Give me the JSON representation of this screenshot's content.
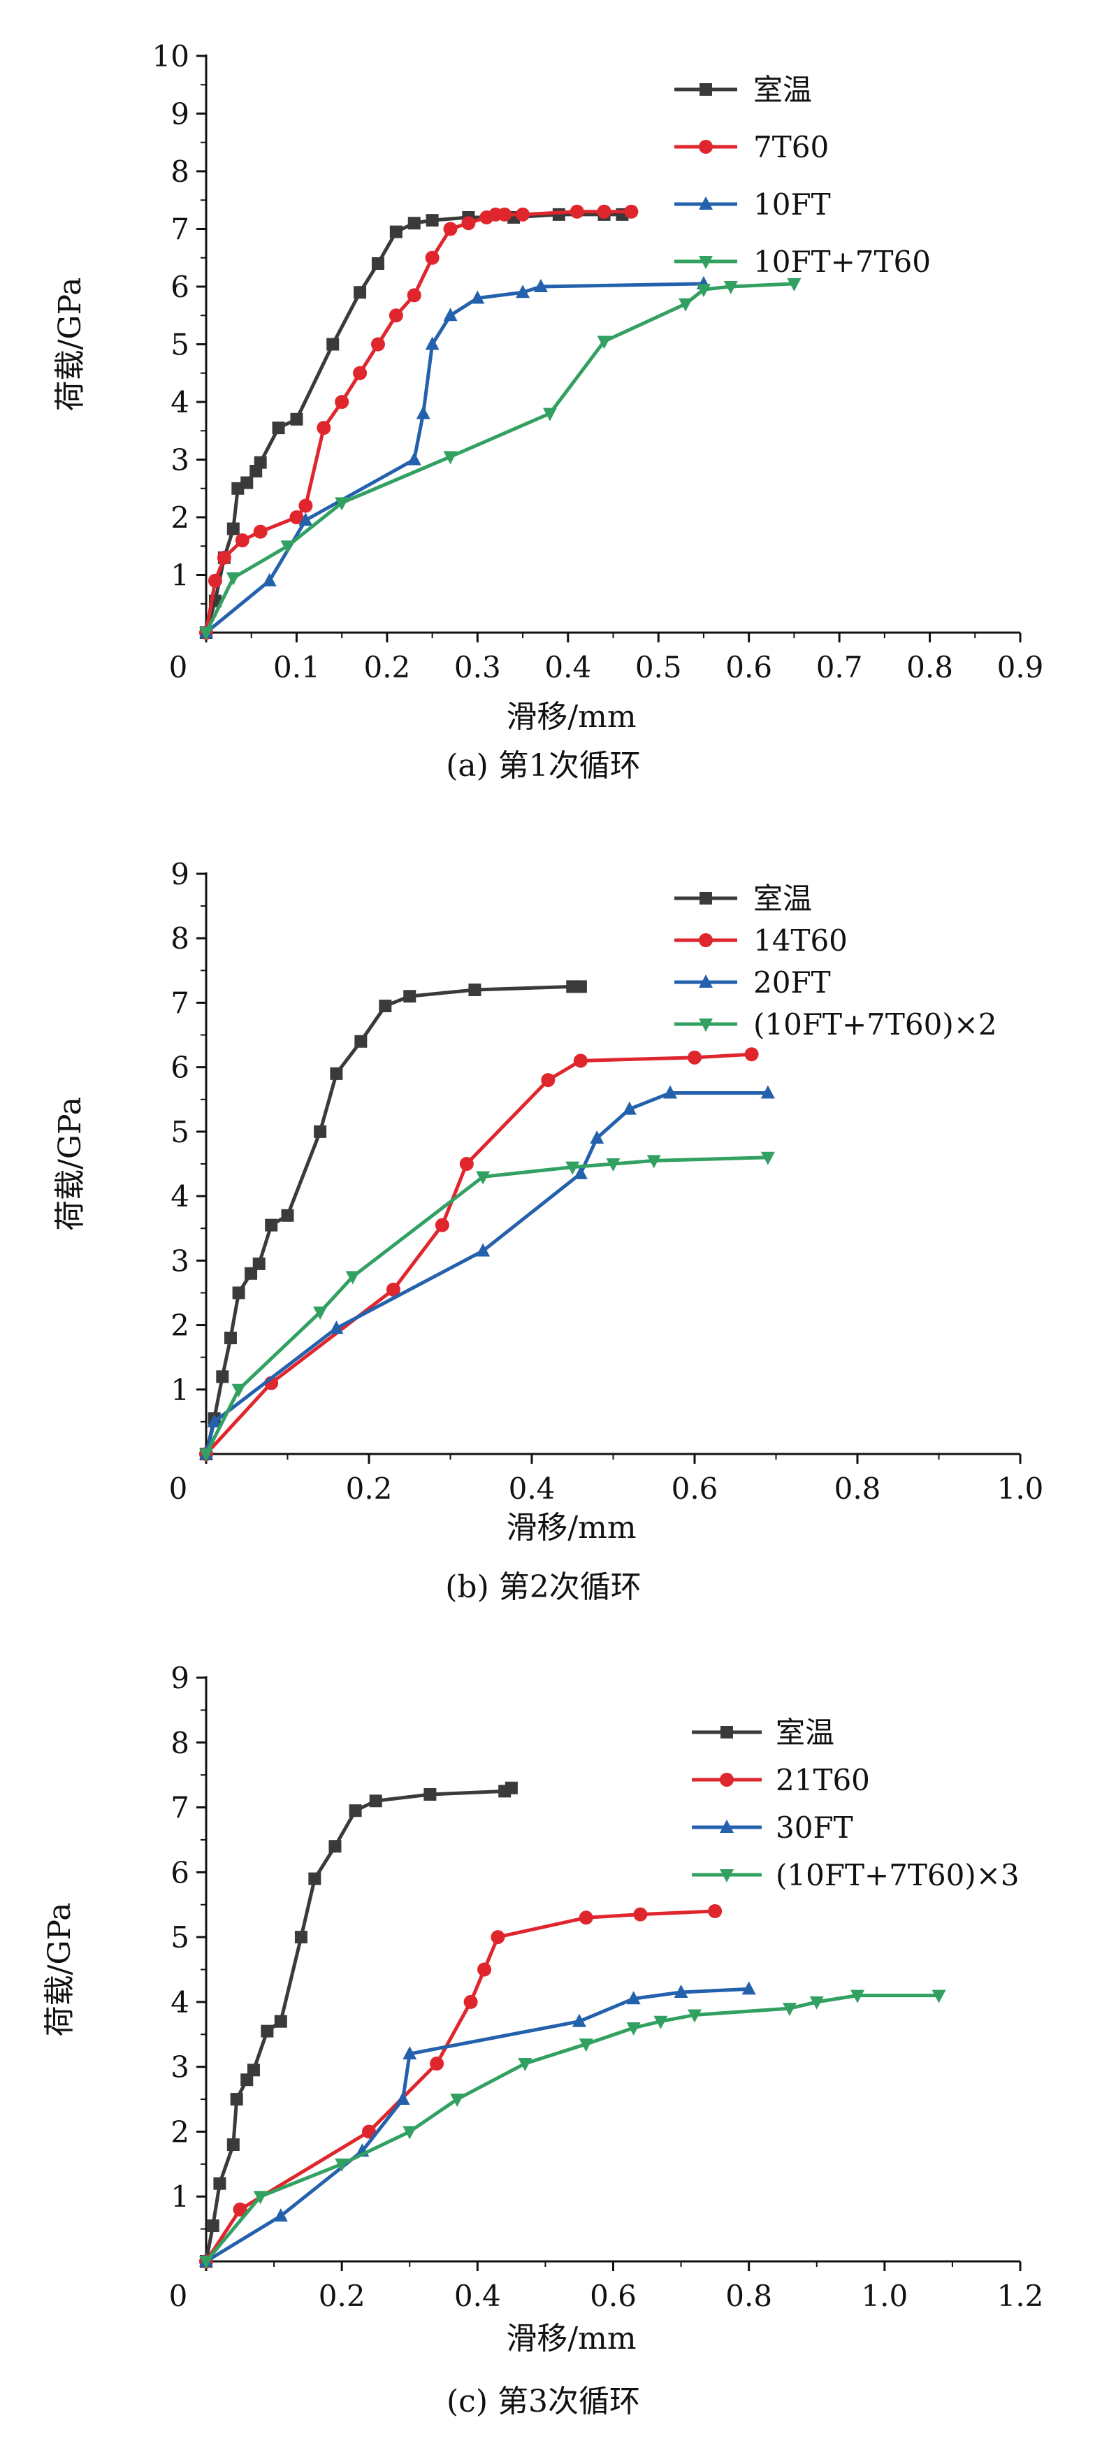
{
  "colors": {
    "room_temp": "#3a3a3a",
    "red": "#e0262d",
    "blue": "#2461ad",
    "green": "#31a060"
  },
  "chart_data": [
    {
      "type": "line",
      "caption": "(a) 第1次循环",
      "xlabel": "滑移/mm",
      "ylabel": "荷载/GPa",
      "xlim": [
        0,
        0.9
      ],
      "ylim": [
        0,
        10
      ],
      "xticks": [
        "0",
        "0.1",
        "0.2",
        "0.3",
        "0.4",
        "0.5",
        "0.6",
        "0.7",
        "0.8",
        "0.9"
      ],
      "yticks": [
        "1",
        "2",
        "3",
        "4",
        "5",
        "6",
        "7",
        "8",
        "9",
        "10"
      ],
      "legend_position": "top-right",
      "series": [
        {
          "name": "室温",
          "marker": "square",
          "color": "#3a3a3a",
          "x": [
            0,
            0.01,
            0.02,
            0.03,
            0.035,
            0.045,
            0.055,
            0.06,
            0.08,
            0.1,
            0.14,
            0.17,
            0.19,
            0.21,
            0.23,
            0.25,
            0.29,
            0.34,
            0.39,
            0.44,
            0.46
          ],
          "y": [
            0,
            0.55,
            1.3,
            1.8,
            2.5,
            2.6,
            2.8,
            2.95,
            3.55,
            3.7,
            5.0,
            5.9,
            6.4,
            6.95,
            7.1,
            7.15,
            7.2,
            7.2,
            7.25,
            7.25,
            7.25
          ]
        },
        {
          "name": "7T60",
          "marker": "circle",
          "color": "#e0262d",
          "x": [
            0,
            0.01,
            0.02,
            0.04,
            0.06,
            0.1,
            0.11,
            0.13,
            0.15,
            0.17,
            0.19,
            0.21,
            0.23,
            0.25,
            0.27,
            0.29,
            0.31,
            0.32,
            0.33,
            0.35,
            0.41,
            0.44,
            0.47
          ],
          "y": [
            0,
            0.9,
            1.3,
            1.6,
            1.75,
            2.0,
            2.2,
            3.55,
            4.0,
            4.5,
            5.0,
            5.5,
            5.85,
            6.5,
            7.0,
            7.1,
            7.2,
            7.25,
            7.25,
            7.25,
            7.3,
            7.3,
            7.3
          ]
        },
        {
          "name": "10FT",
          "marker": "triangle-up",
          "color": "#2461ad",
          "x": [
            0,
            0.07,
            0.11,
            0.23,
            0.24,
            0.25,
            0.27,
            0.3,
            0.35,
            0.37,
            0.55
          ],
          "y": [
            0,
            0.9,
            1.95,
            3.0,
            3.8,
            5.0,
            5.5,
            5.8,
            5.9,
            6.0,
            6.05
          ]
        },
        {
          "name": "10FT+7T60",
          "marker": "triangle-down",
          "color": "#31a060",
          "x": [
            0,
            0.03,
            0.09,
            0.15,
            0.27,
            0.38,
            0.44,
            0.53,
            0.55,
            0.58,
            0.65
          ],
          "y": [
            0,
            0.95,
            1.5,
            2.25,
            3.05,
            3.8,
            5.05,
            5.7,
            5.95,
            6.0,
            6.05
          ]
        }
      ]
    },
    {
      "type": "line",
      "caption": "(b) 第2次循环",
      "xlabel": "滑移/mm",
      "ylabel": "荷载/GPa",
      "xlim": [
        0,
        1.0
      ],
      "ylim": [
        0,
        9
      ],
      "xticks": [
        "0",
        "0.2",
        "0.4",
        "0.6",
        "0.8",
        "1.0"
      ],
      "yticks": [
        "1",
        "2",
        "3",
        "4",
        "5",
        "6",
        "7",
        "8",
        "9"
      ],
      "legend_position": "top-right",
      "series": [
        {
          "name": "室温",
          "marker": "square",
          "color": "#3a3a3a",
          "x": [
            0,
            0.01,
            0.02,
            0.03,
            0.04,
            0.055,
            0.065,
            0.08,
            0.1,
            0.14,
            0.16,
            0.19,
            0.22,
            0.25,
            0.33,
            0.45,
            0.46
          ],
          "y": [
            0,
            0.55,
            1.2,
            1.8,
            2.5,
            2.8,
            2.95,
            3.55,
            3.7,
            5.0,
            5.9,
            6.4,
            6.95,
            7.1,
            7.2,
            7.25,
            7.25
          ]
        },
        {
          "name": "14T60",
          "marker": "circle",
          "color": "#e0262d",
          "x": [
            0,
            0.08,
            0.23,
            0.29,
            0.32,
            0.42,
            0.46,
            0.6,
            0.67
          ],
          "y": [
            0,
            1.1,
            2.55,
            3.55,
            4.5,
            5.8,
            6.1,
            6.15,
            6.2
          ]
        },
        {
          "name": "20FT",
          "marker": "triangle-up",
          "color": "#2461ad",
          "x": [
            0,
            0.01,
            0.16,
            0.34,
            0.46,
            0.48,
            0.52,
            0.57,
            0.69
          ],
          "y": [
            0,
            0.5,
            1.95,
            3.15,
            4.35,
            4.9,
            5.35,
            5.6,
            5.6
          ]
        },
        {
          "name": "(10FT+7T60)×2",
          "marker": "triangle-down",
          "color": "#31a060",
          "x": [
            0,
            0.04,
            0.14,
            0.18,
            0.34,
            0.45,
            0.5,
            0.55,
            0.69
          ],
          "y": [
            0,
            1.0,
            2.2,
            2.75,
            4.3,
            4.45,
            4.5,
            4.55,
            4.6
          ]
        }
      ]
    },
    {
      "type": "line",
      "caption": "(c) 第3次循环",
      "xlabel": "滑移/mm",
      "ylabel": "荷载/GPa",
      "xlim": [
        0,
        1.2
      ],
      "ylim": [
        0,
        9
      ],
      "xticks": [
        "0",
        "0.2",
        "0.4",
        "0.6",
        "0.8",
        "1.0",
        "1.2"
      ],
      "yticks": [
        "1",
        "2",
        "3",
        "4",
        "5",
        "6",
        "7",
        "8",
        "9"
      ],
      "legend_position": "top-right",
      "series": [
        {
          "name": "室温",
          "marker": "square",
          "color": "#3a3a3a",
          "x": [
            0,
            0.01,
            0.02,
            0.04,
            0.045,
            0.06,
            0.07,
            0.09,
            0.11,
            0.14,
            0.16,
            0.19,
            0.22,
            0.25,
            0.33,
            0.44,
            0.45
          ],
          "y": [
            0,
            0.55,
            1.2,
            1.8,
            2.5,
            2.8,
            2.95,
            3.55,
            3.7,
            5.0,
            5.9,
            6.4,
            6.95,
            7.1,
            7.2,
            7.25,
            7.3
          ]
        },
        {
          "name": "21T60",
          "marker": "circle",
          "color": "#e0262d",
          "x": [
            0,
            0.05,
            0.24,
            0.34,
            0.39,
            0.41,
            0.43,
            0.56,
            0.64,
            0.75
          ],
          "y": [
            0,
            0.8,
            2.0,
            3.05,
            4.0,
            4.5,
            5.0,
            5.3,
            5.35,
            5.4
          ]
        },
        {
          "name": "30FT",
          "marker": "triangle-up",
          "color": "#2461ad",
          "x": [
            0,
            0.11,
            0.23,
            0.29,
            0.3,
            0.55,
            0.63,
            0.7,
            0.8
          ],
          "y": [
            0,
            0.7,
            1.7,
            2.5,
            3.2,
            3.7,
            4.05,
            4.15,
            4.2
          ]
        },
        {
          "name": "(10FT+7T60)×3",
          "marker": "triangle-down",
          "color": "#31a060",
          "x": [
            0,
            0.08,
            0.2,
            0.3,
            0.37,
            0.47,
            0.56,
            0.63,
            0.67,
            0.72,
            0.86,
            0.9,
            0.96,
            1.08
          ],
          "y": [
            0,
            1.0,
            1.5,
            2.0,
            2.5,
            3.05,
            3.35,
            3.6,
            3.7,
            3.8,
            3.9,
            4.0,
            4.1,
            4.1
          ]
        }
      ]
    }
  ]
}
